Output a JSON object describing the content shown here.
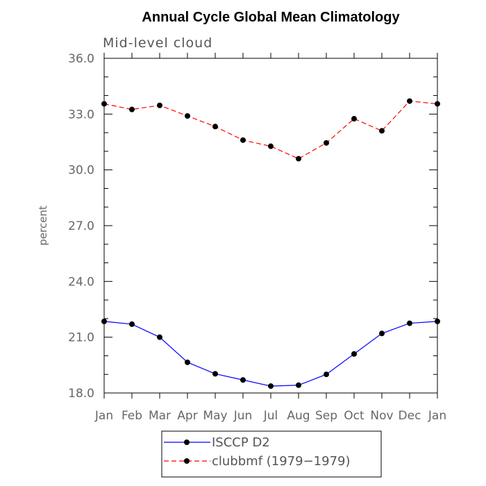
{
  "chart_data": {
    "type": "line",
    "title": "Annual Cycle Global Mean Climatology",
    "subtitle": "Mid-level cloud",
    "ylabel": "percent",
    "xlabel": "",
    "ylim": [
      18.0,
      36.0
    ],
    "yticks": [
      "18.0",
      "21.0",
      "24.0",
      "27.0",
      "30.0",
      "33.0",
      "36.0"
    ],
    "categories": [
      "Jan",
      "Feb",
      "Mar",
      "Apr",
      "May",
      "Jun",
      "Jul",
      "Aug",
      "Sep",
      "Oct",
      "Nov",
      "Dec",
      "Jan"
    ],
    "series": [
      {
        "name": "ISCCP D2",
        "color": "#0000ff",
        "dash": "solid",
        "values": [
          21.85,
          21.7,
          21.0,
          19.65,
          19.03,
          18.7,
          18.37,
          18.42,
          19.0,
          20.1,
          21.2,
          21.75,
          21.85
        ]
      },
      {
        "name": "clubbmf (1979-1979)",
        "color": "#ff0000",
        "dash": "dashed",
        "values": [
          33.55,
          33.25,
          33.47,
          32.9,
          32.33,
          31.6,
          31.27,
          30.6,
          31.45,
          32.75,
          32.1,
          33.7,
          33.55
        ]
      }
    ],
    "legend": {
      "position": "bottom-center",
      "entries": [
        "ISCCP D2",
        "clubbmf (1979−1979)"
      ]
    },
    "grid": false
  }
}
